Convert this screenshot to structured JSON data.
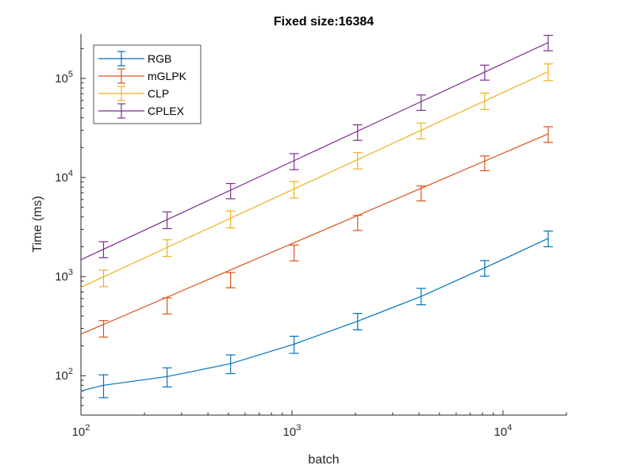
{
  "chart_data": {
    "type": "line",
    "title": "Fixed size:16384",
    "xlabel": "batch",
    "ylabel": "Time (ms)",
    "xscale": "log",
    "yscale": "log",
    "xlim": [
      100,
      20000
    ],
    "ylim": [
      40,
      280000
    ],
    "x_ticks": [
      {
        "value": 100,
        "base": "10",
        "exp": "2"
      },
      {
        "value": 1000,
        "base": "10",
        "exp": "3"
      },
      {
        "value": 10000,
        "base": "10",
        "exp": "4"
      }
    ],
    "y_ticks": [
      {
        "value": 100,
        "base": "10",
        "exp": "2"
      },
      {
        "value": 1000,
        "base": "10",
        "exp": "3"
      },
      {
        "value": 10000,
        "base": "10",
        "exp": "4"
      },
      {
        "value": 100000,
        "base": "10",
        "exp": "5"
      }
    ],
    "legend_position": "top-left",
    "x": [
      128,
      256,
      512,
      1024,
      2048,
      4096,
      8192,
      16384
    ],
    "series": [
      {
        "name": "RGB",
        "color": "#0072BD",
        "line_x": [
          100,
          128,
          256,
          512,
          1024,
          2048,
          4096,
          8192,
          16384
        ],
        "line_y": [
          70,
          80,
          98,
          132,
          208,
          355,
          630,
          1225,
          2430
        ],
        "values": [
          80,
          98,
          132,
          208,
          355,
          630,
          1225,
          2430
        ],
        "err_low": [
          60,
          77,
          105,
          168,
          290,
          520,
          1010,
          2000
        ],
        "err_high": [
          102,
          120,
          162,
          250,
          425,
          760,
          1450,
          2880
        ]
      },
      {
        "name": "mGLPK",
        "color": "#D95319",
        "line_x": [
          100,
          16384
        ],
        "line_y": [
          263,
          27600
        ],
        "values": [
          300,
          505,
          920,
          1750,
          3550,
          6950,
          13900,
          27600
        ],
        "err_low": [
          245,
          420,
          770,
          1440,
          2920,
          5800,
          11700,
          22600
        ],
        "err_high": [
          360,
          610,
          1100,
          2080,
          4150,
          8200,
          16500,
          32500
        ]
      },
      {
        "name": "CLP",
        "color": "#EDB120",
        "line_x": [
          100,
          16384
        ],
        "line_y": [
          780,
          117000
        ],
        "values": [
          960,
          1950,
          3800,
          7600,
          14800,
          29500,
          59500,
          117000
        ],
        "err_low": [
          790,
          1600,
          3100,
          6200,
          12200,
          24500,
          48500,
          95000
        ],
        "err_high": [
          1160,
          2350,
          4600,
          9100,
          17800,
          35500,
          71000,
          140000
        ]
      },
      {
        "name": "CPLEX",
        "color": "#7E2F8E",
        "line_x": [
          100,
          16384
        ],
        "line_y": [
          1480,
          230000
        ],
        "values": [
          1850,
          3700,
          7400,
          14500,
          28700,
          57500,
          115000,
          230000
        ],
        "err_low": [
          1550,
          3050,
          6100,
          12000,
          23700,
          47500,
          96000,
          190000
        ],
        "err_high": [
          2250,
          4500,
          8700,
          17400,
          34000,
          68000,
          136000,
          272000
        ]
      }
    ]
  }
}
